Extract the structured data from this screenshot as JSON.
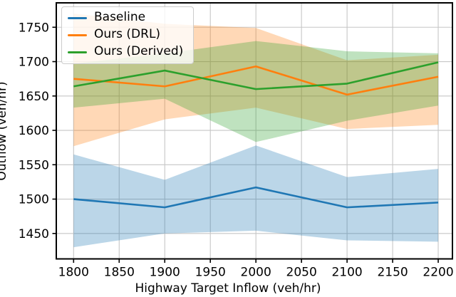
{
  "figure": {
    "xlabel": "Highway Target Inflow (veh/hr)",
    "ylabel": "Outflow (veh/hr)"
  },
  "chart_data": {
    "type": "line",
    "x": [
      1800,
      1900,
      2000,
      2100,
      2200
    ],
    "series": [
      {
        "name": "Baseline",
        "color": "#1f77b4",
        "values": [
          1500,
          1488,
          1517,
          1488,
          1495
        ],
        "band_low": [
          1430,
          1450,
          1454,
          1440,
          1438
        ],
        "band_high": [
          1565,
          1528,
          1578,
          1532,
          1544
        ]
      },
      {
        "name": "Ours (DRL)",
        "color": "#ff7f0e",
        "values": [
          1675,
          1664,
          1693,
          1652,
          1678
        ],
        "band_low": [
          1577,
          1616,
          1633,
          1602,
          1608
        ],
        "band_high": [
          1770,
          1755,
          1749,
          1702,
          1710
        ]
      },
      {
        "name": "Ours (Derived)",
        "color": "#2ca02c",
        "values": [
          1664,
          1687,
          1660,
          1668,
          1699
        ],
        "band_low": [
          1633,
          1646,
          1583,
          1614,
          1636
        ],
        "band_high": [
          1697,
          1712,
          1730,
          1715,
          1712
        ]
      }
    ],
    "band_alpha": 0.3,
    "x_ticks": [
      1800,
      1850,
      1900,
      1950,
      2000,
      2050,
      2100,
      2150,
      2200
    ],
    "y_ticks": [
      1450,
      1500,
      1550,
      1600,
      1650,
      1700,
      1750
    ],
    "xlim": [
      1781,
      2215.6
    ],
    "ylim": [
      1413,
      1785.5
    ],
    "grid": true,
    "grid_color": "#c6c6c6",
    "spine_color": "#000000",
    "tick_label_color": "#000000",
    "legend_position": "upper left",
    "title": "",
    "xlabel": "Highway Target Inflow (veh/hr)",
    "ylabel": "Outflow (veh/hr)"
  }
}
